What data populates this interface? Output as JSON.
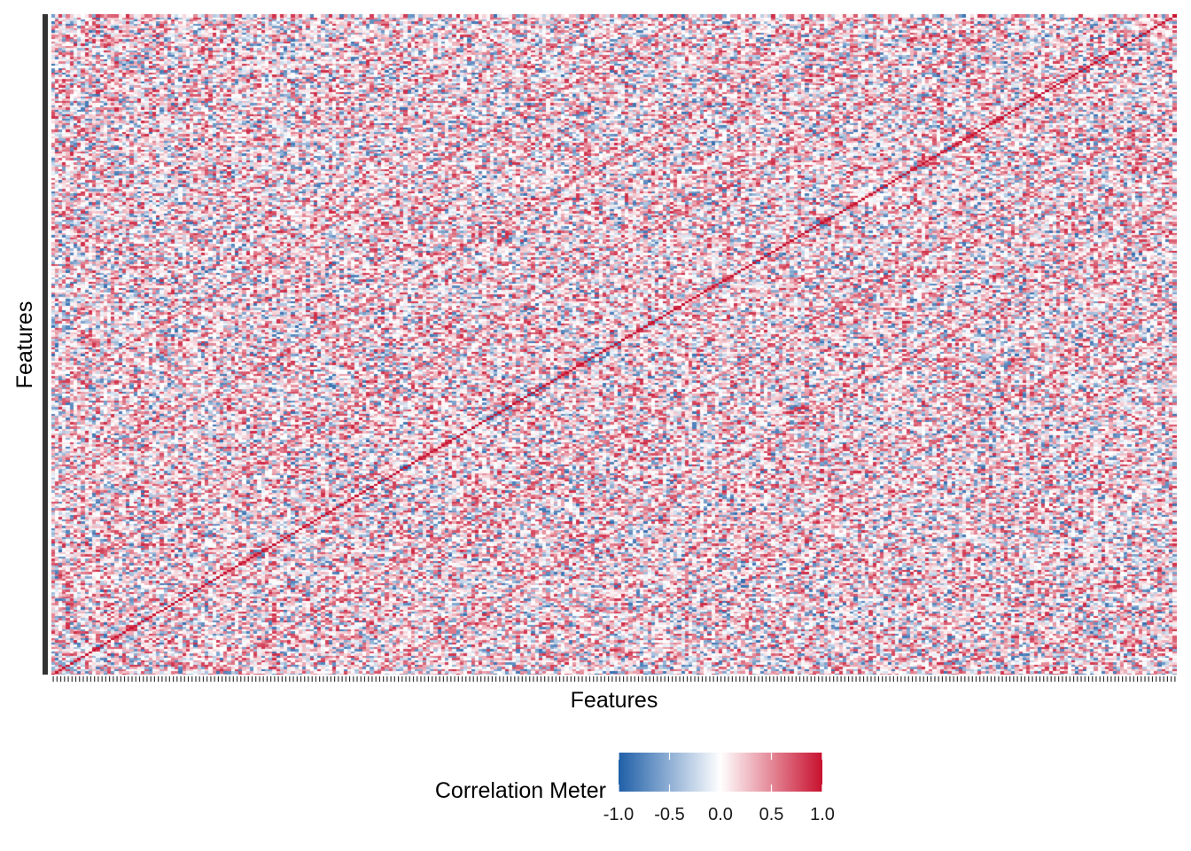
{
  "chart_data": {
    "type": "heatmap",
    "title": "",
    "xlabel": "Features",
    "ylabel": "Features",
    "x_tick_labels_shown": false,
    "y_tick_labels_shown": false,
    "matrix_size_approx": 300,
    "diagonal_value": 1.0,
    "value_range": [
      -1.0,
      1.0
    ],
    "grid": false,
    "legend": {
      "title": "Correlation Meter",
      "position": "bottom",
      "ticks": [
        {
          "value": -1.0,
          "label": "-1.0"
        },
        {
          "value": -0.5,
          "label": "-0.5"
        },
        {
          "value": 0.0,
          "label": "0.0"
        },
        {
          "value": 0.5,
          "label": "0.5"
        },
        {
          "value": 1.0,
          "label": "1.0"
        }
      ],
      "colors": {
        "low": "#1f5fa8",
        "mid": "#ffffff",
        "high": "#c8102e"
      }
    }
  }
}
